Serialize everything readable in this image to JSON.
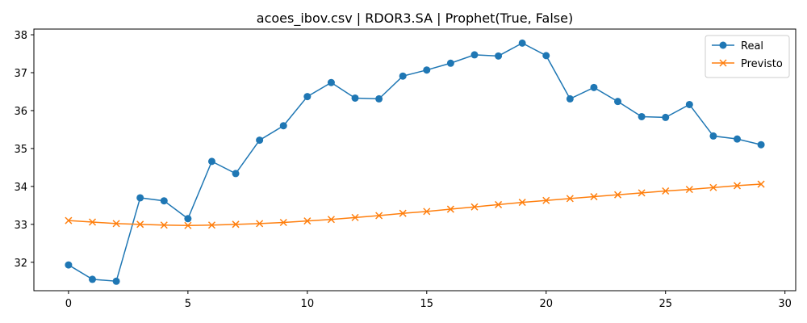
{
  "chart_data": {
    "type": "line",
    "title": "acoes_ibov.csv | RDOR3.SA | Prophet(True, False)",
    "xlabel": "",
    "ylabel": "",
    "xlim": [
      -1.45,
      30.45
    ],
    "ylim": [
      31.25,
      38.15
    ],
    "x_ticks": [
      0,
      5,
      10,
      15,
      20,
      25,
      30
    ],
    "y_ticks": [
      32,
      33,
      34,
      35,
      36,
      37,
      38
    ],
    "grid": false,
    "legend_position": "top-right",
    "x": [
      0,
      1,
      2,
      3,
      4,
      5,
      6,
      7,
      8,
      9,
      10,
      11,
      12,
      13,
      14,
      15,
      16,
      17,
      18,
      19,
      20,
      21,
      22,
      23,
      24,
      25,
      26,
      27,
      28,
      29
    ],
    "series": [
      {
        "name": "Real",
        "color": "#1f77b4",
        "marker": "circle",
        "values": [
          31.93,
          31.55,
          31.5,
          33.7,
          33.62,
          33.15,
          34.66,
          34.34,
          35.22,
          35.6,
          36.37,
          36.74,
          36.33,
          36.31,
          36.91,
          37.07,
          37.25,
          37.47,
          37.44,
          37.78,
          37.45,
          36.31,
          36.61,
          36.24,
          35.84,
          35.82,
          36.16,
          35.33,
          35.25,
          35.1
        ]
      },
      {
        "name": "Previsto",
        "color": "#ff7f0e",
        "marker": "x",
        "values": [
          33.1,
          33.06,
          33.02,
          33.0,
          32.98,
          32.97,
          32.98,
          33.0,
          33.02,
          33.05,
          33.09,
          33.13,
          33.18,
          33.23,
          33.29,
          33.34,
          33.4,
          33.46,
          33.52,
          33.58,
          33.63,
          33.68,
          33.73,
          33.78,
          33.83,
          33.88,
          33.92,
          33.97,
          34.02,
          34.06
        ]
      }
    ]
  }
}
